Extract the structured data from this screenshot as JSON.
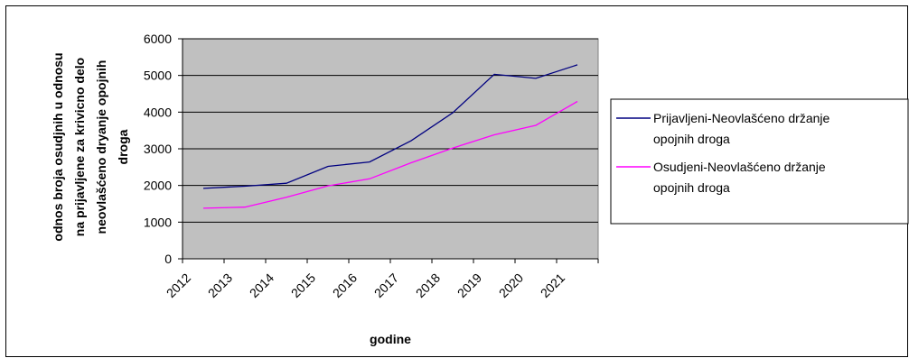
{
  "chart_data": {
    "type": "line",
    "xlabel": "godine",
    "ylabel_lines": [
      "odnos broja osudjnih u odnosu",
      "na prijavljene za krivicno delo",
      "neovlašćeno dryanje opojnih",
      "droga"
    ],
    "categories": [
      "2012",
      "2013",
      "2014",
      "2015",
      "2016",
      "2017",
      "2018",
      "2019",
      "2020",
      "2021"
    ],
    "ylim": [
      0,
      6000
    ],
    "yticks": [
      0,
      1000,
      2000,
      3000,
      4000,
      5000,
      6000
    ],
    "grid": true,
    "plot_background": "#c0c0c0",
    "legend_position": "right",
    "series": [
      {
        "name_lines": [
          "Prijavljeni-Neovlašćeno držanje",
          "opojnih droga"
        ],
        "color": "#000080",
        "values": [
          1920,
          1980,
          2060,
          2520,
          2640,
          3220,
          3980,
          5030,
          4920,
          5290
        ]
      },
      {
        "name_lines": [
          "Osudjeni-Neovlašćeno držanje",
          "opojnih droga"
        ],
        "color": "#ff00ff",
        "values": [
          1380,
          1410,
          1680,
          1990,
          2180,
          2620,
          3020,
          3380,
          3640,
          4290
        ]
      }
    ]
  }
}
